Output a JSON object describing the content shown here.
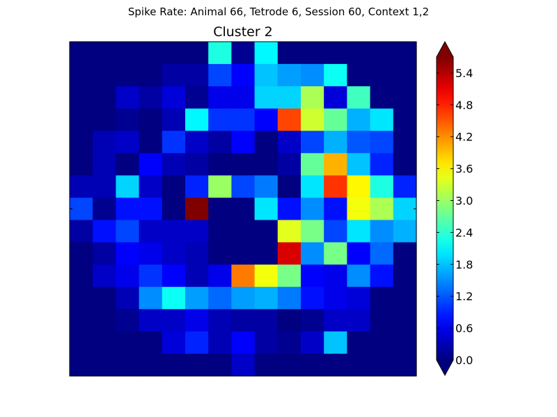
{
  "figure": {
    "suptitle": "Spike Rate: Animal 66, Tetrode 6, Session 60, Context 1,2"
  },
  "colors": {
    "background": "#ffffff",
    "cmap": "jet",
    "under": "#00007f",
    "over": "#7f0000"
  },
  "chart_data": {
    "type": "heatmap",
    "title": "Cluster 2",
    "xlabel": "",
    "ylabel": "",
    "colorbar": {
      "vmin": 0.0,
      "vmax": 5.7,
      "extend": "both",
      "ticks": [
        0.0,
        0.6,
        1.2,
        1.8,
        2.4,
        3.0,
        3.6,
        4.2,
        4.8,
        5.4
      ],
      "tick_labels": [
        "0.0",
        "0.6",
        "1.2",
        "1.8",
        "2.4",
        "3.0",
        "3.6",
        "4.2",
        "4.8",
        "5.4"
      ]
    },
    "rows": 15,
    "cols": 15,
    "values": [
      [
        0,
        0,
        0,
        0,
        0,
        0,
        2.3,
        0.1,
        2.1,
        0,
        0,
        0,
        0,
        0,
        0
      ],
      [
        0,
        0,
        0,
        0,
        0.2,
        0.2,
        1.1,
        0.7,
        1.8,
        1.6,
        1.5,
        2.2,
        0,
        0,
        0
      ],
      [
        0,
        0,
        0.4,
        0.2,
        0.5,
        0.1,
        0.6,
        0.6,
        1.9,
        1.9,
        3.1,
        0.5,
        2.5,
        0,
        0
      ],
      [
        0,
        0,
        0.1,
        0,
        0.3,
        2.1,
        1.0,
        1.0,
        0.7,
        4.6,
        3.3,
        2.7,
        1.7,
        2.0,
        0
      ],
      [
        0,
        0.3,
        0.4,
        0,
        1.0,
        0.4,
        0.2,
        0.7,
        0,
        0.4,
        1.1,
        1.7,
        1.2,
        1.1,
        0
      ],
      [
        0,
        0.3,
        0,
        0.7,
        0.3,
        0.2,
        0,
        0,
        0,
        0.2,
        2.7,
        4.0,
        1.8,
        0.9,
        0
      ],
      [
        0.3,
        0.3,
        1.9,
        0.4,
        0,
        0.9,
        3.0,
        1.1,
        1.4,
        0,
        2.0,
        4.7,
        3.6,
        2.3,
        0.9
      ],
      [
        1.1,
        0.1,
        0.8,
        0.8,
        0,
        5.7,
        0,
        0,
        2.0,
        0.8,
        1.5,
        0.8,
        3.5,
        3.1,
        1.9
      ],
      [
        0.2,
        0.8,
        1.1,
        0.4,
        0.4,
        0.4,
        0,
        0,
        0,
        3.4,
        2.8,
        1.1,
        2.0,
        1.5,
        1.7
      ],
      [
        0,
        0.2,
        0.7,
        0.6,
        0.4,
        0.3,
        0,
        0,
        0,
        5.2,
        1.5,
        2.8,
        0.7,
        1.3,
        0
      ],
      [
        0,
        0.4,
        0.6,
        1.0,
        0.7,
        0.3,
        0.6,
        4.3,
        3.5,
        2.8,
        0.7,
        0.6,
        1.5,
        0.8,
        0
      ],
      [
        0,
        0,
        0.3,
        1.5,
        2.2,
        1.6,
        1.3,
        1.6,
        1.7,
        1.4,
        0.8,
        0.6,
        0.5,
        0,
        0
      ],
      [
        0,
        0,
        0.1,
        0.4,
        0.4,
        0.6,
        0.3,
        0.2,
        0.2,
        0,
        0.1,
        0.4,
        0.4,
        0,
        0
      ],
      [
        0,
        0,
        0,
        0,
        0.5,
        0.9,
        0.3,
        0.7,
        0.2,
        0.1,
        0.4,
        1.8,
        0,
        0,
        0
      ],
      [
        0,
        0,
        0,
        0,
        0,
        0,
        0,
        0.4,
        0,
        0,
        0,
        0,
        0,
        0,
        0
      ]
    ]
  }
}
